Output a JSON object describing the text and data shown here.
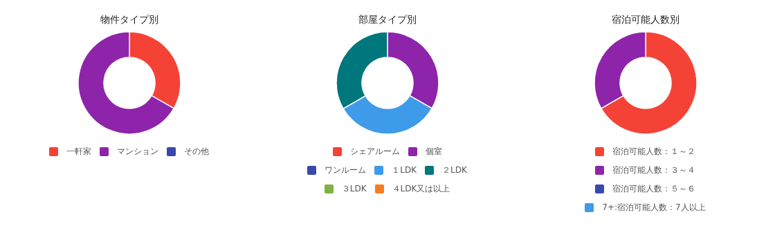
{
  "chart_data": [
    {
      "type": "donut",
      "title": "物件タイプ別",
      "categories": [
        "一軒家",
        "マンション",
        "その他"
      ],
      "values": [
        33.3,
        66.7,
        0
      ],
      "colors": [
        "#f44336",
        "#8e24aa",
        "#3949ab"
      ],
      "legend": "bottom"
    },
    {
      "type": "donut",
      "title": "部屋タイプ別",
      "categories": [
        "シェアルーム",
        "個室",
        "ワンルーム",
        "１LDK",
        "２LDK",
        "３LDK",
        "４LDK又は以上"
      ],
      "values": [
        0,
        33.3,
        0,
        33.3,
        33.4,
        0,
        0
      ],
      "colors": [
        "#f44336",
        "#8e24aa",
        "#3949ab",
        "#3d9be9",
        "#00777d",
        "#7cb342",
        "#f57c1f"
      ],
      "legend": "bottom"
    },
    {
      "type": "donut",
      "title": "宿泊可能人数別",
      "categories": [
        "宿泊可能人数：１～２",
        "宿泊可能人数：３～４",
        "宿泊可能人数：５～６",
        "7+:宿泊可能人数：7人以上"
      ],
      "values": [
        66.7,
        33.3,
        0,
        0
      ],
      "colors": [
        "#f44336",
        "#8e24aa",
        "#3949ab",
        "#3d9be9"
      ],
      "legend": "bottom"
    }
  ]
}
